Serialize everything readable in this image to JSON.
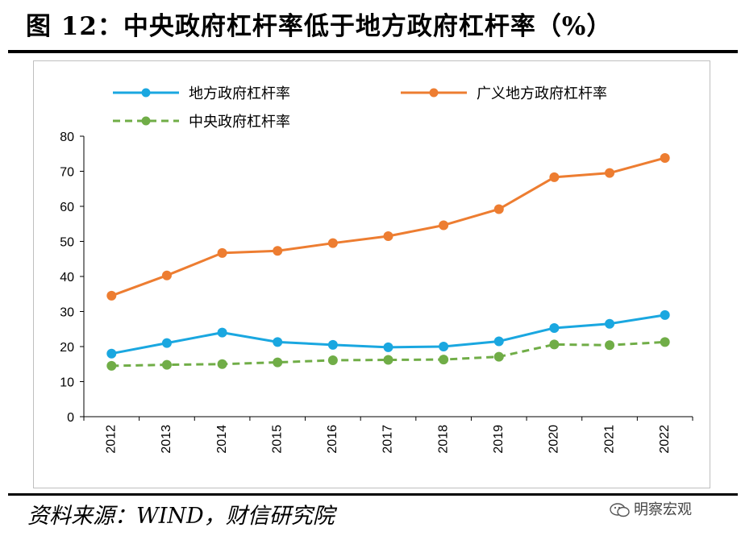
{
  "header": {
    "title": "图 12：中央政府杠杆率低于地方政府杠杆率（%）"
  },
  "footer": {
    "source": "资料来源：WIND，财信研究院",
    "watermark": "明察宏观",
    "watermark_icon": "wechat-icon"
  },
  "chart_data": {
    "type": "line",
    "title": "中央政府杠杆率低于地方政府杠杆率（%）",
    "xlabel": "",
    "ylabel": "",
    "categories": [
      "2012",
      "2013",
      "2014",
      "2015",
      "2016",
      "2017",
      "2018",
      "2019",
      "2020",
      "2021",
      "2022"
    ],
    "ylim": [
      0,
      80
    ],
    "yticks": [
      0,
      10,
      20,
      30,
      40,
      50,
      60,
      70,
      80
    ],
    "grid": false,
    "legend_position": "top",
    "series": [
      {
        "name": "地方政府杠杆率",
        "color": "#1aa7e0",
        "style": "solid",
        "values": [
          18.0,
          21.0,
          24.0,
          21.3,
          20.5,
          19.8,
          20.0,
          21.5,
          25.3,
          26.5,
          29.0
        ]
      },
      {
        "name": "广义地方政府杠杆率",
        "color": "#ed7d31",
        "style": "solid",
        "values": [
          34.5,
          40.3,
          46.7,
          47.3,
          49.5,
          51.5,
          54.6,
          59.2,
          68.3,
          69.5,
          73.8
        ]
      },
      {
        "name": "中央政府杠杆率",
        "color": "#70ad47",
        "style": "dashed",
        "values": [
          14.5,
          14.8,
          15.0,
          15.5,
          16.1,
          16.2,
          16.3,
          17.1,
          20.6,
          20.4,
          21.3
        ]
      }
    ]
  }
}
